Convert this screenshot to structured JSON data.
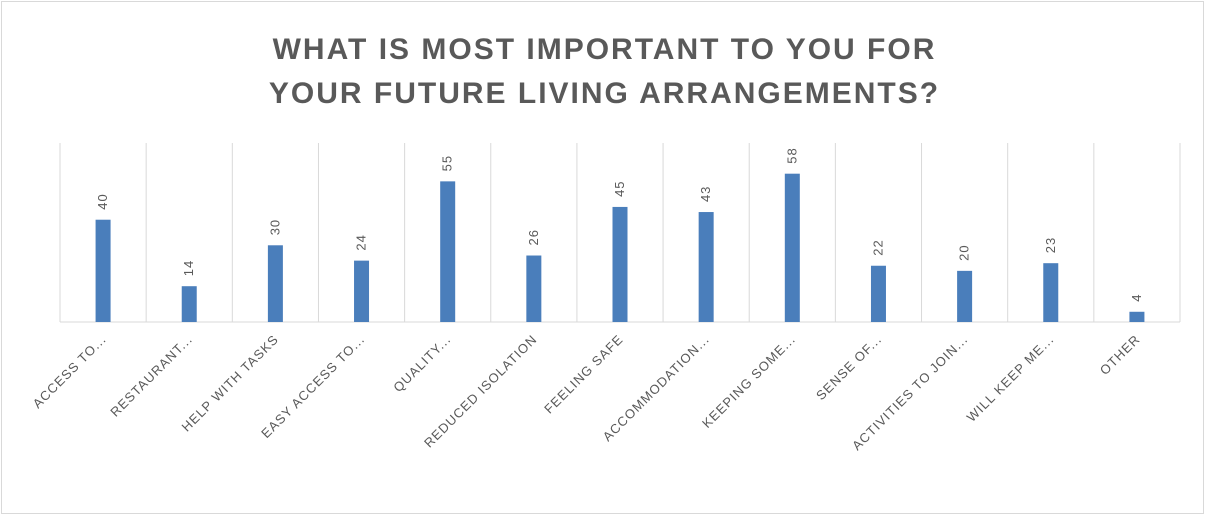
{
  "chart_data": {
    "type": "bar",
    "title": "WHAT IS MOST IMPORTANT TO YOU FOR YOUR FUTURE LIVING ARRANGEMENTS?",
    "categories": [
      "ACCESS TO...",
      "RESTAURANT...",
      "HELP WITH TASKS",
      "EASY ACCESS TO...",
      "QUALITY...",
      "REDUCED ISOLATION",
      "FEELING SAFE",
      "ACCOMMODATION...",
      "KEEPING SOME...",
      "SENSE OF...",
      "ACTIVITIES TO JOIN...",
      "WILL KEEP ME...",
      "OTHER"
    ],
    "values": [
      40,
      14,
      30,
      24,
      55,
      26,
      45,
      43,
      58,
      22,
      20,
      23,
      4
    ],
    "color": "#4a7ebb",
    "ylim": [
      0,
      70
    ]
  }
}
